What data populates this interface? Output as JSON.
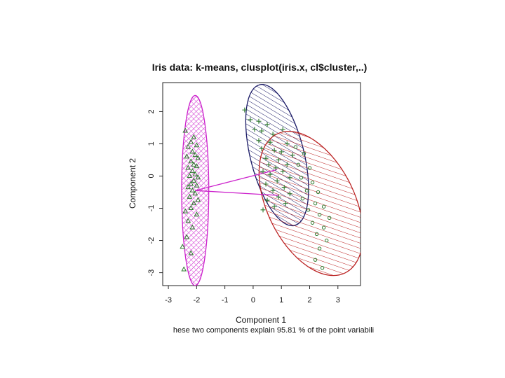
{
  "chart_data": {
    "type": "scatter",
    "title": "Iris data: k-means, clusplot(iris.x, cl$cluster,..)",
    "xlabel": "Component 1",
    "ylabel": "Component 2",
    "subtitle": "hese two components explain 95.81 % of the point variabili",
    "xlim": [
      -3.2,
      3.8
    ],
    "ylim": [
      -3.4,
      2.9
    ],
    "xticks": [
      -3,
      -2,
      -1,
      0,
      1,
      2,
      3
    ],
    "yticks": [
      -3,
      -2,
      -1,
      0,
      1,
      2
    ],
    "xtick_labels": [
      "-3",
      "-2",
      "-1",
      "0",
      "1",
      "2",
      "3"
    ],
    "ytick_labels": [
      "-3",
      "-2",
      "-1",
      "0",
      "1",
      "2"
    ],
    "clusters": [
      {
        "id": 1,
        "marker": "triangle",
        "ellipse": {
          "center": [
            -2.05,
            -0.45
          ],
          "semi_axes": [
            0.48,
            2.95
          ],
          "angle": 0,
          "hatch": "crosshatch"
        },
        "points": [
          [
            -2.4,
            1.4
          ],
          [
            -2.1,
            1.2
          ],
          [
            -2.2,
            1.05
          ],
          [
            -2.0,
            0.95
          ],
          [
            -2.3,
            0.9
          ],
          [
            -2.15,
            0.75
          ],
          [
            -2.05,
            0.65
          ],
          [
            -2.35,
            0.6
          ],
          [
            -1.95,
            0.55
          ],
          [
            -2.2,
            0.45
          ],
          [
            -2.1,
            0.35
          ],
          [
            -2.0,
            0.3
          ],
          [
            -2.3,
            0.25
          ],
          [
            -2.15,
            0.15
          ],
          [
            -2.05,
            0.05
          ],
          [
            -2.25,
            0.0
          ],
          [
            -1.95,
            -0.05
          ],
          [
            -2.1,
            -0.15
          ],
          [
            -2.2,
            -0.25
          ],
          [
            -2.0,
            -0.3
          ],
          [
            -2.3,
            -0.35
          ],
          [
            -2.15,
            -0.45
          ],
          [
            -2.05,
            -0.55
          ],
          [
            -2.25,
            -0.65
          ],
          [
            -1.95,
            -0.75
          ],
          [
            -2.1,
            -0.85
          ],
          [
            -2.2,
            -1.0
          ],
          [
            -2.4,
            -1.1
          ],
          [
            -2.0,
            -1.2
          ],
          [
            -2.3,
            -1.4
          ],
          [
            -2.15,
            -1.6
          ],
          [
            -2.35,
            -1.9
          ],
          [
            -2.5,
            -2.2
          ],
          [
            -2.2,
            -2.4
          ],
          [
            -2.45,
            -2.9
          ]
        ]
      },
      {
        "id": 2,
        "marker": "plus",
        "ellipse": {
          "center": [
            0.85,
            0.65
          ],
          "semi_axes": [
            0.95,
            2.25
          ],
          "angle": -14,
          "hatch": "hatch"
        },
        "points": [
          [
            -0.3,
            2.05
          ],
          [
            -0.1,
            1.75
          ],
          [
            0.2,
            1.7
          ],
          [
            0.5,
            1.6
          ],
          [
            0.05,
            1.45
          ],
          [
            0.3,
            1.4
          ],
          [
            0.7,
            1.3
          ],
          [
            1.05,
            1.45
          ],
          [
            0.2,
            1.1
          ],
          [
            0.6,
            1.05
          ],
          [
            1.2,
            1.0
          ],
          [
            0.3,
            0.85
          ],
          [
            0.75,
            0.8
          ],
          [
            1.0,
            0.75
          ],
          [
            1.4,
            0.65
          ],
          [
            0.45,
            0.55
          ],
          [
            0.9,
            0.5
          ],
          [
            0.55,
            0.35
          ],
          [
            1.2,
            0.35
          ],
          [
            0.8,
            0.25
          ],
          [
            0.35,
            0.15
          ],
          [
            1.05,
            0.15
          ],
          [
            0.6,
            0.05
          ],
          [
            1.3,
            -0.05
          ],
          [
            0.85,
            -0.15
          ],
          [
            0.45,
            -0.25
          ],
          [
            1.1,
            -0.35
          ],
          [
            0.7,
            -0.45
          ],
          [
            1.3,
            -0.55
          ],
          [
            0.9,
            -0.65
          ],
          [
            0.5,
            -0.75
          ],
          [
            1.15,
            -0.85
          ],
          [
            0.75,
            -0.95
          ],
          [
            0.35,
            -1.05
          ]
        ]
      },
      {
        "id": 3,
        "marker": "circle",
        "ellipse": {
          "center": [
            2.05,
            -0.85
          ],
          "semi_axes": [
            1.55,
            2.4
          ],
          "angle": -26,
          "hatch": "hatch"
        },
        "points": [
          [
            1.5,
            0.9
          ],
          [
            1.8,
            0.7
          ],
          [
            1.6,
            0.35
          ],
          [
            2.0,
            0.25
          ],
          [
            1.7,
            -0.05
          ],
          [
            2.1,
            -0.2
          ],
          [
            1.9,
            -0.45
          ],
          [
            2.3,
            -0.5
          ],
          [
            1.75,
            -0.7
          ],
          [
            2.2,
            -0.85
          ],
          [
            2.5,
            -0.95
          ],
          [
            1.95,
            -1.05
          ],
          [
            2.35,
            -1.2
          ],
          [
            2.7,
            -1.3
          ],
          [
            2.1,
            -1.45
          ],
          [
            2.5,
            -1.6
          ],
          [
            2.25,
            -1.8
          ],
          [
            2.6,
            -2.0
          ],
          [
            2.35,
            -2.25
          ],
          [
            2.2,
            -2.6
          ],
          [
            2.45,
            -2.85
          ]
        ]
      }
    ],
    "connectors": [
      [
        [
          -2.05,
          -0.45
        ],
        [
          0.85,
          0.2
        ]
      ],
      [
        [
          -2.05,
          -0.45
        ],
        [
          0.9,
          -0.6
        ]
      ]
    ],
    "colors": {
      "cluster1": "#cc22cc",
      "cluster2": "#1a1a66",
      "cluster3": "#bb2222",
      "connector": "#cc22cc",
      "points": "#2d7a2d",
      "axis": "#222222"
    }
  }
}
